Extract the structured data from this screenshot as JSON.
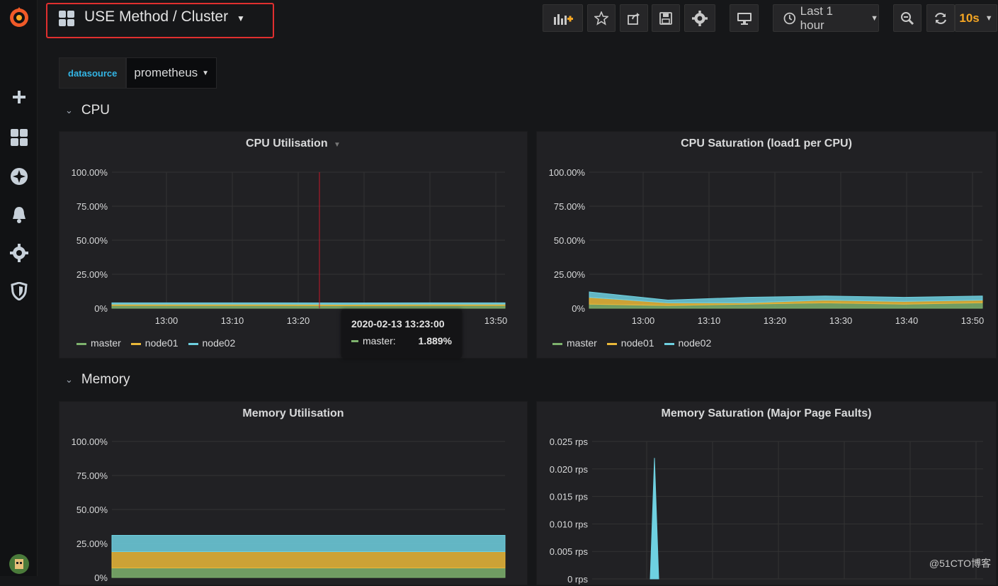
{
  "header": {
    "title": "USE Method / Cluster",
    "time_range": "Last 1 hour",
    "refresh": "10s"
  },
  "variables": [
    {
      "label": "datasource",
      "value": "prometheus"
    }
  ],
  "rows": [
    {
      "title": "CPU"
    },
    {
      "title": "Memory"
    }
  ],
  "panels": {
    "cpu_util": {
      "title": "CPU Utilisation"
    },
    "cpu_sat": {
      "title": "CPU Saturation (load1 per CPU)"
    },
    "mem_util": {
      "title": "Memory Utilisation"
    },
    "mem_sat": {
      "title": "Memory Saturation (Major Page Faults)"
    }
  },
  "tooltip": {
    "time": "2020-02-13 13:23:00",
    "series": "master:",
    "value": "1.889%"
  },
  "watermark": "@51CTO博客",
  "colors": {
    "master": "#7eb26d",
    "node01": "#eab839",
    "node02": "#6ed0e0"
  },
  "chart_data": [
    {
      "type": "area",
      "title": "CPU Utilisation",
      "x": [
        "13:00",
        "13:10",
        "13:20",
        "13:30",
        "13:40",
        "13:50"
      ],
      "ylim": [
        0,
        100
      ],
      "yticks": [
        "100.00%",
        "75.00%",
        "50.00%",
        "25.00%",
        "0%"
      ],
      "series": [
        {
          "name": "master",
          "values": [
            2,
            2,
            2,
            1.889,
            2,
            2
          ]
        },
        {
          "name": "node01",
          "values": [
            1,
            1,
            1,
            1,
            1,
            1
          ]
        },
        {
          "name": "node02",
          "values": [
            1,
            1,
            1,
            1,
            1,
            1
          ]
        }
      ]
    },
    {
      "type": "area",
      "title": "CPU Saturation (load1 per CPU)",
      "x": [
        "13:00",
        "13:10",
        "13:20",
        "13:30",
        "13:40",
        "13:50"
      ],
      "ylim": [
        0,
        100
      ],
      "yticks": [
        "100.00%",
        "75.00%",
        "50.00%",
        "25.00%",
        "0%"
      ],
      "series": [
        {
          "name": "master",
          "values": [
            3,
            2,
            3,
            4,
            3,
            4
          ]
        },
        {
          "name": "node01",
          "values": [
            5,
            2,
            1,
            2,
            2,
            2
          ]
        },
        {
          "name": "node02",
          "values": [
            4,
            2,
            4,
            3,
            3,
            3
          ]
        }
      ]
    },
    {
      "type": "area",
      "title": "Memory Utilisation",
      "ylim": [
        0,
        100
      ],
      "yticks": [
        "100.00%",
        "75.00%",
        "50.00%",
        "25.00%",
        "0%"
      ],
      "series": [
        {
          "name": "master",
          "values": [
            7,
            7,
            7,
            7,
            7,
            7
          ]
        },
        {
          "name": "node01",
          "values": [
            12,
            12,
            12,
            12,
            12,
            12
          ]
        },
        {
          "name": "node02",
          "values": [
            12,
            12,
            12,
            12,
            12,
            12
          ]
        }
      ]
    },
    {
      "type": "area",
      "title": "Memory Saturation (Major Page Faults)",
      "yticks": [
        "0.025 rps",
        "0.020 rps",
        "0.015 rps",
        "0.010 rps",
        "0.005 rps",
        "0 rps"
      ],
      "ylim": [
        0,
        0.025
      ],
      "series": [
        {
          "name": "node02",
          "values": [
            0,
            0.022,
            0
          ]
        }
      ]
    }
  ]
}
